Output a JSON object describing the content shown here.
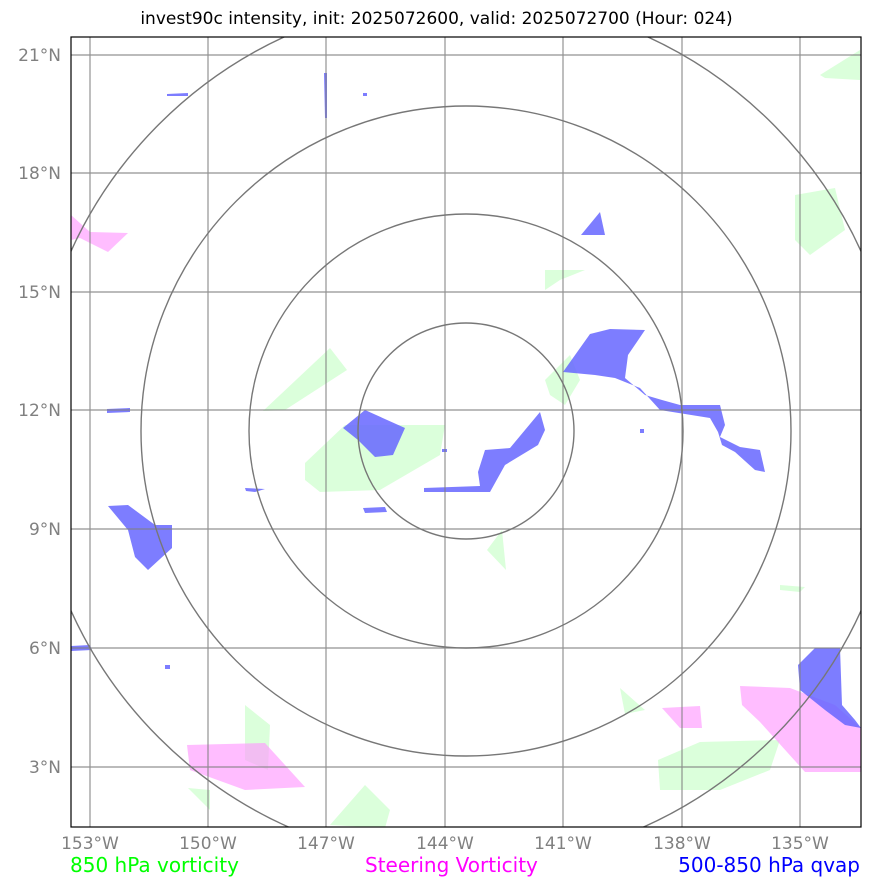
{
  "title": "invest90c intensity, init: 2025072600, valid: 2025072700 (Hour: 024)",
  "lat_ticks": [
    "3°N",
    "6°N",
    "9°N",
    "12°N",
    "15°N",
    "18°N",
    "21°N"
  ],
  "lon_ticks": [
    "153°W",
    "150°W",
    "147°W",
    "144°W",
    "141°W",
    "138°W",
    "135°W"
  ],
  "legend": {
    "vort850": {
      "label": "850 hPa vorticity",
      "color": "#00ff00"
    },
    "steering": {
      "label": "Steering Vorticity",
      "color": "#ff00ff"
    },
    "qvap": {
      "label": "500-850 hPa qvap",
      "color": "#0000ff"
    }
  },
  "colors": {
    "vort850_fill": "#ccffcc",
    "steering_fill": "#ff99ff",
    "qvap_fill": "#6666ff",
    "grid": "#808080",
    "rings": "#777777"
  }
}
